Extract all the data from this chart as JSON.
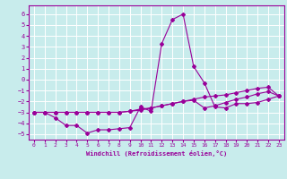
{
  "xlabel": "Windchill (Refroidissement éolien,°C)",
  "xlim": [
    -0.5,
    23.5
  ],
  "ylim": [
    -5.5,
    6.8
  ],
  "xticks": [
    0,
    1,
    2,
    3,
    4,
    5,
    6,
    7,
    8,
    9,
    10,
    11,
    12,
    13,
    14,
    15,
    16,
    17,
    18,
    19,
    20,
    21,
    22,
    23
  ],
  "yticks": [
    -5,
    -4,
    -3,
    -2,
    -1,
    0,
    1,
    2,
    3,
    4,
    5,
    6
  ],
  "bg_color": "#c8ecec",
  "line_color": "#990099",
  "grid_color": "#ffffff",
  "series1_y": [
    -3.0,
    -3.0,
    -3.5,
    -4.2,
    -4.2,
    -4.9,
    -4.6,
    -4.6,
    -4.5,
    -4.4,
    -2.5,
    -2.9,
    3.3,
    5.5,
    6.0,
    1.2,
    -0.3,
    -2.5,
    -2.6,
    -2.2,
    -2.2,
    -2.1,
    -1.8,
    -1.5
  ],
  "series2_y": [
    -3.0,
    -3.0,
    -3.0,
    -3.0,
    -3.0,
    -3.0,
    -3.0,
    -3.0,
    -3.0,
    -2.9,
    -2.7,
    -2.6,
    -2.4,
    -2.2,
    -2.0,
    -1.8,
    -1.6,
    -1.5,
    -1.4,
    -1.2,
    -1.0,
    -0.8,
    -0.7,
    -1.5
  ],
  "series3_y": [
    -3.0,
    -3.0,
    -3.0,
    -3.0,
    -3.0,
    -3.0,
    -3.0,
    -3.0,
    -3.0,
    -2.9,
    -2.8,
    -2.6,
    -2.4,
    -2.2,
    -2.0,
    -1.9,
    -2.6,
    -2.4,
    -2.1,
    -1.8,
    -1.6,
    -1.3,
    -1.1,
    -1.5
  ]
}
